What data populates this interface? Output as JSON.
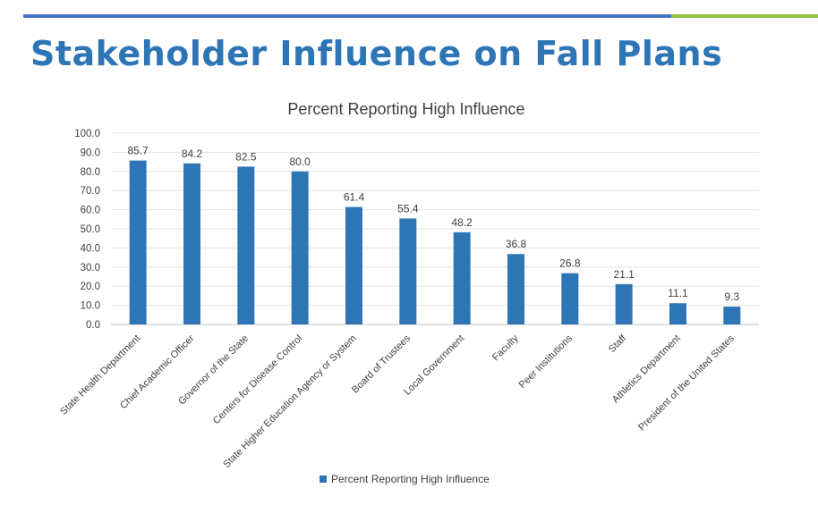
{
  "slide": {
    "title": "Stakeholder Influence on Fall Plans",
    "title_color": "#2E75B6",
    "rule_blue": "#4472C4",
    "rule_green": "#8DC63F"
  },
  "chart_data": {
    "type": "bar",
    "title": "Percent Reporting High Influence",
    "categories": [
      "State Health Department",
      "Chief Academic Officer",
      "Governor of the State",
      "Centers for Disease Control",
      "State Higher Education Agency or System",
      "Board of Trustees",
      "Local Government",
      "Faculty",
      "Peer Institutions",
      "Staff",
      "Athletics Department",
      "President of the United States"
    ],
    "series": [
      {
        "name": "Percent Reporting High Influence",
        "color": "#2E75B6",
        "values": [
          85.7,
          84.2,
          82.5,
          80.0,
          61.4,
          55.4,
          48.2,
          36.8,
          26.8,
          21.1,
          11.1,
          9.3
        ]
      }
    ],
    "ylim": [
      0,
      100
    ],
    "yticks": [
      "0.0",
      "10.0",
      "20.0",
      "30.0",
      "40.0",
      "50.0",
      "60.0",
      "70.0",
      "80.0",
      "90.0",
      "100.0"
    ],
    "data_labels": [
      "85.7",
      "84.2",
      "82.5",
      "80.0",
      "61.4",
      "55.4",
      "48.2",
      "36.8",
      "26.8",
      "21.1",
      "11.1",
      "9.3"
    ],
    "grid": true,
    "legend_position": "bottom",
    "xlabel": "",
    "ylabel": ""
  }
}
